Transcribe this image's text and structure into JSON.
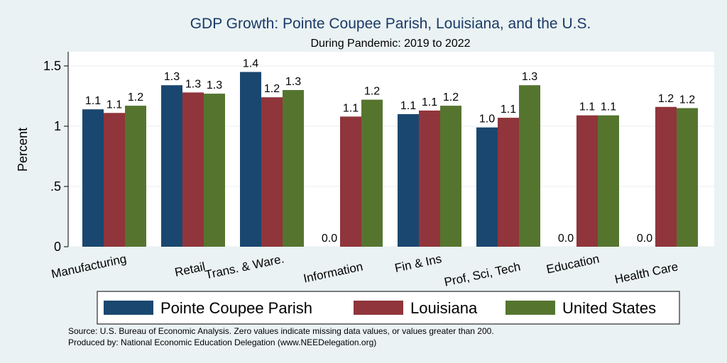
{
  "chart_data": {
    "type": "bar",
    "title": "GDP Growth: Pointe Coupee Parish, Louisiana, and the U.S.",
    "subtitle": "During Pandemic: 2019 to 2022",
    "ylabel": "Percent",
    "ylim": [
      0,
      1.6
    ],
    "yticks": [
      {
        "value": 0,
        "label": "0"
      },
      {
        "value": 0.5,
        "label": ".5"
      },
      {
        "value": 1,
        "label": "1"
      },
      {
        "value": 1.5,
        "label": "1.5"
      }
    ],
    "grid": true,
    "legend_position": "bottom",
    "categories": [
      "Manufacturing",
      "Retail",
      "Trans. & Ware.",
      "Information",
      "Fin & Ins",
      "Prof, Sci, Tech",
      "Education",
      "Health Care"
    ],
    "series": [
      {
        "name": "Pointe Coupee Parish",
        "color": "#1a476f",
        "values": [
          1.14,
          1.34,
          1.45,
          0,
          1.1,
          0.99,
          0,
          0
        ],
        "labels": [
          "1.1",
          "1.3",
          "1.4",
          "0.0",
          "1.1",
          "1.0",
          "0.0",
          "0.0"
        ]
      },
      {
        "name": "Louisiana",
        "color": "#90353b",
        "values": [
          1.11,
          1.28,
          1.24,
          1.08,
          1.13,
          1.07,
          1.09,
          1.16
        ],
        "labels": [
          "1.1",
          "1.3",
          "1.2",
          "1.1",
          "1.1",
          "1.1",
          "1.1",
          "1.2"
        ]
      },
      {
        "name": "United States",
        "color": "#55752f",
        "values": [
          1.17,
          1.27,
          1.3,
          1.22,
          1.17,
          1.34,
          1.09,
          1.15
        ],
        "labels": [
          "1.2",
          "1.3",
          "1.3",
          "1.2",
          "1.2",
          "1.3",
          "1.1",
          "1.2"
        ]
      }
    ],
    "notes": [
      "Source: U.S. Bureau of Economic Analysis. Zero values indicate missing data values, or values greater than 200.",
      "Produced by: National Economic Education Delegation (www.NEEDelegation.org)"
    ]
  }
}
